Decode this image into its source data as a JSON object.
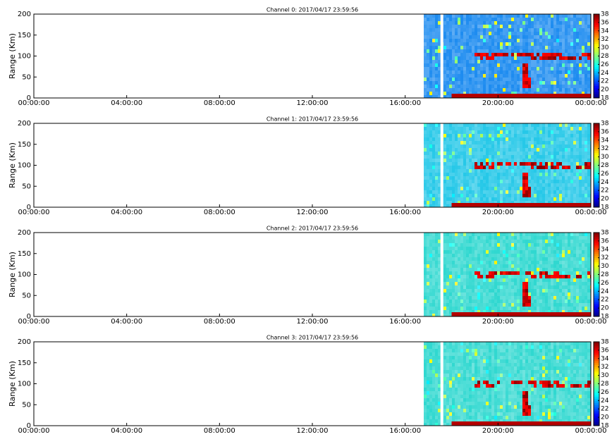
{
  "chart_data": [
    {
      "type": "heatmap",
      "title": "Channel 0: 2017/04/17 23:59:56",
      "ylabel": "Range (Km)",
      "xlim": [
        0,
        24
      ],
      "xticks": [
        {
          "value": 0,
          "label": "00:00:00"
        },
        {
          "value": 4,
          "label": "04:00:00"
        },
        {
          "value": 8,
          "label": "08:00:00"
        },
        {
          "value": 12,
          "label": "12:00:00"
        },
        {
          "value": 16,
          "label": "16:00:00"
        },
        {
          "value": 20,
          "label": "20:00:00"
        },
        {
          "value": 24,
          "label": "00:00:00"
        }
      ],
      "ylim": [
        0,
        200
      ],
      "yticks": [
        0,
        50,
        100,
        150,
        200
      ],
      "clim": [
        18,
        38
      ],
      "cticks": [
        18,
        20,
        22,
        24,
        26,
        28,
        30,
        32,
        34,
        36,
        38
      ],
      "colormap": "jet",
      "fill_color": "#1e8cf0"
    },
    {
      "type": "heatmap",
      "title": "Channel 1: 2017/04/17 23:59:56",
      "ylabel": "Range (Km)",
      "xlim": [
        0,
        24
      ],
      "xticks": [
        {
          "value": 0,
          "label": "00:00:00"
        },
        {
          "value": 4,
          "label": "04:00:00"
        },
        {
          "value": 8,
          "label": "08:00:00"
        },
        {
          "value": 12,
          "label": "12:00:00"
        },
        {
          "value": 16,
          "label": "16:00:00"
        },
        {
          "value": 20,
          "label": "20:00:00"
        },
        {
          "value": 24,
          "label": "00:00:00"
        }
      ],
      "ylim": [
        0,
        200
      ],
      "yticks": [
        0,
        50,
        100,
        150,
        200
      ],
      "clim": [
        18,
        38
      ],
      "cticks": [
        18,
        20,
        22,
        24,
        26,
        28,
        30,
        32,
        34,
        36,
        38
      ],
      "colormap": "jet",
      "fill_color": "#26c8e8"
    },
    {
      "type": "heatmap",
      "title": "Channel 2: 2017/04/17 23:59:56",
      "ylabel": "Range (Km)",
      "xlim": [
        0,
        24
      ],
      "xticks": [
        {
          "value": 0,
          "label": "00:00:00"
        },
        {
          "value": 4,
          "label": "04:00:00"
        },
        {
          "value": 8,
          "label": "08:00:00"
        },
        {
          "value": 12,
          "label": "12:00:00"
        },
        {
          "value": 16,
          "label": "16:00:00"
        },
        {
          "value": 20,
          "label": "20:00:00"
        },
        {
          "value": 24,
          "label": "00:00:00"
        }
      ],
      "ylim": [
        0,
        200
      ],
      "yticks": [
        0,
        50,
        100,
        150,
        200
      ],
      "clim": [
        18,
        38
      ],
      "cticks": [
        18,
        20,
        22,
        24,
        26,
        28,
        30,
        32,
        34,
        36,
        38
      ],
      "colormap": "jet",
      "fill_color": "#30d8d0"
    },
    {
      "type": "heatmap",
      "title": "Channel 3: 2017/04/17 23:59:56",
      "ylabel": "Range (Km)",
      "xlim": [
        0,
        24
      ],
      "xticks": [
        {
          "value": 0,
          "label": "00:00:00"
        },
        {
          "value": 4,
          "label": "04:00:00"
        },
        {
          "value": 8,
          "label": "08:00:00"
        },
        {
          "value": 12,
          "label": "12:00:00"
        },
        {
          "value": 16,
          "label": "16:00:00"
        },
        {
          "value": 20,
          "label": "20:00:00"
        },
        {
          "value": 24,
          "label": "00:00:00"
        }
      ],
      "ylim": [
        0,
        200
      ],
      "yticks": [
        0,
        50,
        100,
        150,
        200
      ],
      "clim": [
        18,
        38
      ],
      "cticks": [
        18,
        20,
        22,
        24,
        26,
        28,
        30,
        32,
        34,
        36,
        38
      ],
      "colormap": "jet",
      "fill_color": "#30d8d0"
    }
  ]
}
